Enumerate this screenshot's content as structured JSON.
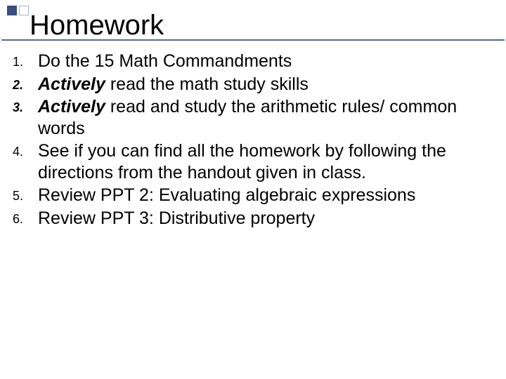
{
  "slide": {
    "title": "Homework",
    "accent_color": "#3b4f7d",
    "outline_color": "#a8b2c8",
    "rule_color": "#5b6a94",
    "background_color": "#ffffff",
    "text_color": "#000000",
    "title_fontsize": 40,
    "body_fontsize": 25,
    "number_fontsize": 18
  },
  "items": [
    {
      "n": "1.",
      "n_style": "plain",
      "prefix": "",
      "text": "Do the 15 Math Commandments"
    },
    {
      "n": "2.",
      "n_style": "italic",
      "prefix": "Actively ",
      "text": "read the math study skills"
    },
    {
      "n": "3.",
      "n_style": "italic",
      "prefix": "Actively ",
      "text": "read and study the arithmetic rules/ common words"
    },
    {
      "n": "4.",
      "n_style": "plain",
      "prefix": "",
      "text": "See if you can find all the homework by following the directions from the handout given in class."
    },
    {
      "n": "5.",
      "n_style": "plain",
      "prefix": "",
      "text": "Review PPT 2: Evaluating algebraic expressions"
    },
    {
      "n": "6.",
      "n_style": "plain",
      "prefix": "",
      "text": "Review PPT 3: Distributive property"
    }
  ]
}
